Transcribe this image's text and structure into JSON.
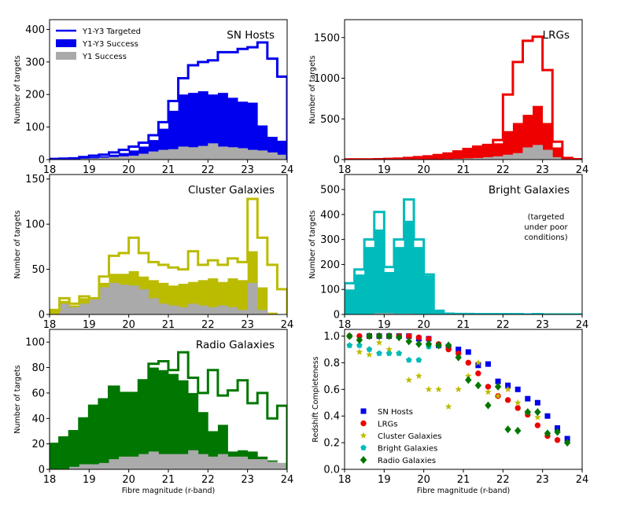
{
  "chart_data": [
    {
      "id": "sn",
      "type": "histogram",
      "title": "SN Hosts",
      "xlabel": "",
      "ylabel": "Number of targets",
      "xlim": [
        18,
        24
      ],
      "ylim": [
        0,
        430
      ],
      "xticks": [
        18,
        19,
        20,
        21,
        22,
        23,
        24
      ],
      "yticks": [
        0,
        100,
        200,
        300,
        400
      ],
      "bin_start": 18,
      "bin_width": 0.25,
      "series": [
        {
          "name": "Y1-Y3 Targeted",
          "style": "step",
          "color": "#0000ee",
          "values": [
            2,
            3,
            4,
            8,
            12,
            15,
            22,
            30,
            40,
            52,
            75,
            115,
            180,
            250,
            290,
            300,
            305,
            330,
            330,
            340,
            345,
            360,
            310,
            255
          ]
        },
        {
          "name": "Y1-Y3 Success",
          "style": "fill",
          "color": "#0000ee",
          "values": [
            2,
            3,
            4,
            6,
            8,
            10,
            15,
            20,
            28,
            40,
            60,
            95,
            150,
            200,
            205,
            210,
            200,
            205,
            190,
            178,
            175,
            105,
            70,
            58
          ]
        },
        {
          "name": "Y1 Success",
          "style": "fill",
          "color": "#aaaaaa",
          "values": [
            1,
            2,
            2,
            3,
            4,
            6,
            8,
            10,
            12,
            18,
            25,
            30,
            32,
            40,
            38,
            42,
            50,
            40,
            38,
            35,
            30,
            28,
            22,
            15
          ]
        }
      ],
      "legend": {
        "position": "top-left",
        "entries": [
          "Y1-Y3 Targeted",
          "Y1-Y3 Success",
          "Y1 Success"
        ]
      }
    },
    {
      "id": "lrg",
      "type": "histogram",
      "title": "LRGs",
      "xlabel": "",
      "ylabel": "Number of targets",
      "xlim": [
        18,
        24
      ],
      "ylim": [
        0,
        1720
      ],
      "xticks": [
        18,
        19,
        20,
        21,
        22,
        23,
        24
      ],
      "yticks": [
        0,
        500,
        1000,
        1500
      ],
      "bin_start": 18,
      "bin_width": 0.25,
      "series": [
        {
          "name": "",
          "style": "step",
          "color": "#ee0000",
          "values": [
            2,
            2,
            3,
            5,
            8,
            12,
            20,
            30,
            40,
            55,
            75,
            100,
            130,
            160,
            180,
            240,
            800,
            1200,
            1460,
            1510,
            1100,
            220,
            20,
            5
          ]
        },
        {
          "name": "",
          "style": "fill",
          "color": "#ee0000",
          "values": [
            2,
            2,
            3,
            5,
            8,
            12,
            20,
            30,
            40,
            55,
            75,
            100,
            130,
            160,
            180,
            200,
            350,
            450,
            550,
            660,
            450,
            150,
            15,
            4
          ]
        },
        {
          "name": "",
          "style": "fill",
          "color": "#aaaaaa",
          "values": [
            0,
            0,
            0,
            0,
            1,
            1,
            2,
            3,
            4,
            5,
            7,
            10,
            15,
            20,
            30,
            40,
            60,
            80,
            150,
            180,
            120,
            30,
            5,
            1
          ]
        }
      ]
    },
    {
      "id": "cluster",
      "type": "histogram",
      "title": "Cluster Galaxies",
      "xlabel": "",
      "ylabel": "Number of targets",
      "xlim": [
        18,
        24
      ],
      "ylim": [
        0,
        155
      ],
      "xticks": [
        18,
        19,
        20,
        21,
        22,
        23,
        24
      ],
      "yticks": [
        0,
        50,
        100,
        150
      ],
      "bin_start": 18,
      "bin_width": 0.25,
      "series": [
        {
          "name": "",
          "style": "step",
          "color": "#bbbb00",
          "values": [
            5,
            18,
            12,
            20,
            18,
            42,
            65,
            68,
            85,
            68,
            58,
            55,
            52,
            50,
            70,
            55,
            60,
            55,
            62,
            58,
            128,
            85,
            55,
            28
          ]
        },
        {
          "name": "",
          "style": "fill",
          "color": "#bbbb00",
          "values": [
            5,
            15,
            10,
            18,
            15,
            35,
            45,
            45,
            48,
            42,
            38,
            35,
            32,
            34,
            36,
            38,
            40,
            36,
            40,
            38,
            70,
            30,
            2,
            0
          ]
        },
        {
          "name": "",
          "style": "fill",
          "color": "#aaaaaa",
          "values": [
            0,
            12,
            8,
            12,
            18,
            30,
            35,
            33,
            32,
            28,
            18,
            12,
            10,
            8,
            12,
            10,
            8,
            10,
            8,
            5,
            35,
            5,
            0,
            0
          ]
        }
      ]
    },
    {
      "id": "bright",
      "type": "histogram",
      "title": "Bright Galaxies",
      "annotation": "(targeted\nunder poor\nconditions)",
      "xlabel": "",
      "ylabel": "Number of targets",
      "xlim": [
        18,
        24
      ],
      "ylim": [
        0,
        560
      ],
      "xticks": [
        18,
        19,
        20,
        21,
        22,
        23,
        24
      ],
      "yticks": [
        0,
        100,
        200,
        300,
        400,
        500
      ],
      "bin_start": 18,
      "bin_width": 0.25,
      "series": [
        {
          "name": "",
          "style": "step",
          "color": "#00bbbb",
          "values": [
            125,
            180,
            300,
            410,
            190,
            300,
            460,
            300,
            160,
            15,
            3,
            2,
            2,
            1,
            1,
            1,
            1,
            1,
            0,
            1,
            0,
            0,
            0,
            0
          ]
        },
        {
          "name": "",
          "style": "fill",
          "color": "#00bbbb",
          "values": [
            100,
            160,
            270,
            340,
            170,
            270,
            375,
            270,
            155,
            12,
            3,
            2,
            2,
            1,
            1,
            1,
            1,
            1,
            0,
            1,
            0,
            0,
            0,
            0
          ]
        },
        {
          "name": "",
          "style": "fill",
          "color": "#aaaaaa",
          "values": [
            0,
            0,
            0,
            5,
            5,
            3,
            3,
            2,
            1,
            0,
            0,
            0,
            0,
            0,
            0,
            0,
            0,
            0,
            0,
            0,
            0,
            0,
            0,
            0
          ]
        }
      ]
    },
    {
      "id": "radio",
      "type": "histogram",
      "title": "Radio Galaxies",
      "xlabel": "Fibre magnitude (r-band)",
      "ylabel": "Number of targets",
      "xlim": [
        18,
        24
      ],
      "ylim": [
        0,
        110
      ],
      "xticks": [
        18,
        19,
        20,
        21,
        22,
        23,
        24
      ],
      "yticks": [
        0,
        20,
        40,
        60,
        80,
        100
      ],
      "bin_start": 18,
      "bin_width": 0.25,
      "series": [
        {
          "name": "",
          "style": "step",
          "color": "#007700",
          "values": [
            20,
            25,
            30,
            40,
            50,
            55,
            65,
            60,
            60,
            70,
            83,
            85,
            78,
            92,
            72,
            60,
            78,
            58,
            62,
            70,
            52,
            60,
            40,
            50
          ]
        },
        {
          "name": "",
          "style": "fill",
          "color": "#007700",
          "values": [
            20,
            25,
            30,
            40,
            50,
            55,
            65,
            60,
            60,
            70,
            80,
            78,
            75,
            70,
            60,
            45,
            30,
            35,
            14,
            15,
            14,
            10,
            7,
            5
          ]
        },
        {
          "name": "",
          "style": "fill",
          "color": "#aaaaaa",
          "values": [
            0,
            0,
            2,
            4,
            4,
            5,
            8,
            10,
            10,
            12,
            14,
            12,
            12,
            12,
            15,
            12,
            10,
            12,
            10,
            10,
            8,
            8,
            6,
            5
          ]
        }
      ]
    },
    {
      "id": "completeness",
      "type": "scatter",
      "xlabel": "Fibre magnitude (r-band)",
      "ylabel": "Redshift Completeness",
      "xlim": [
        18,
        24
      ],
      "ylim": [
        0.0,
        1.05
      ],
      "xticks": [
        18,
        19,
        20,
        21,
        22,
        23,
        24
      ],
      "yticks": [
        0.0,
        0.2,
        0.4,
        0.6,
        0.8,
        1.0
      ],
      "legend": {
        "position": "lower-left"
      },
      "series": [
        {
          "name": "SN Hosts",
          "marker": "square",
          "color": "#0000ee",
          "x": [
            18.625,
            18.875,
            19.125,
            19.375,
            19.625,
            19.875,
            20.125,
            20.375,
            20.625,
            20.875,
            21.125,
            21.375,
            21.625,
            21.875,
            22.125,
            22.375,
            22.625,
            22.875,
            23.125,
            23.375,
            23.625
          ],
          "y": [
            1.0,
            1.0,
            1.0,
            1.0,
            1.0,
            0.98,
            0.98,
            0.93,
            0.92,
            0.9,
            0.88,
            0.78,
            0.79,
            0.66,
            0.63,
            0.6,
            0.53,
            0.5,
            0.4,
            0.31,
            0.23
          ]
        },
        {
          "name": "LRGs",
          "marker": "circle",
          "color": "#ee0000",
          "x": [
            18.125,
            18.375,
            18.625,
            18.875,
            19.125,
            19.375,
            19.625,
            19.875,
            20.125,
            20.375,
            20.625,
            20.875,
            21.125,
            21.375,
            21.625,
            21.875,
            22.125,
            22.375,
            22.625,
            22.875,
            23.125,
            23.375
          ],
          "y": [
            1.0,
            1.0,
            1.0,
            1.0,
            1.0,
            1.0,
            1.0,
            0.99,
            0.98,
            0.94,
            0.9,
            0.87,
            0.8,
            0.72,
            0.62,
            0.55,
            0.52,
            0.46,
            0.41,
            0.33,
            0.25,
            0.22
          ]
        },
        {
          "name": "Cluster Galaxies",
          "marker": "star",
          "color": "#bbbb00",
          "x": [
            18.125,
            18.375,
            18.625,
            18.875,
            19.125,
            19.375,
            19.625,
            19.875,
            20.125,
            20.375,
            20.625,
            20.875,
            21.125,
            21.375,
            21.625,
            21.875,
            22.125,
            22.375,
            22.625,
            22.875
          ],
          "y": [
            0.93,
            0.88,
            0.86,
            0.95,
            0.9,
            0.87,
            0.67,
            0.7,
            0.6,
            0.6,
            0.47,
            0.6,
            0.7,
            0.8,
            0.58,
            0.55,
            0.6,
            0.5,
            0.43,
            0.39
          ]
        },
        {
          "name": "Bright Galaxies",
          "marker": "pentagon",
          "color": "#00bbbb",
          "x": [
            18.125,
            18.375,
            18.625,
            18.875,
            19.125,
            19.375,
            19.625,
            19.875,
            20.125,
            20.375
          ],
          "y": [
            0.93,
            0.93,
            0.9,
            0.87,
            0.87,
            0.87,
            0.82,
            0.82,
            0.92,
            0.93
          ]
        },
        {
          "name": "Radio Galaxies",
          "marker": "diamond",
          "color": "#007700",
          "x": [
            18.125,
            18.375,
            18.625,
            18.875,
            19.125,
            19.375,
            19.625,
            19.875,
            20.125,
            20.375,
            20.625,
            20.875,
            21.125,
            21.375,
            21.625,
            21.875,
            22.125,
            22.375,
            22.625,
            22.875,
            23.125,
            23.375,
            23.625
          ],
          "y": [
            1.0,
            0.97,
            1.0,
            1.0,
            1.0,
            0.99,
            0.96,
            0.94,
            0.94,
            0.93,
            0.93,
            0.84,
            0.67,
            0.63,
            0.48,
            0.62,
            0.3,
            0.29,
            0.43,
            0.43,
            0.27,
            0.28,
            0.2
          ]
        }
      ]
    }
  ]
}
